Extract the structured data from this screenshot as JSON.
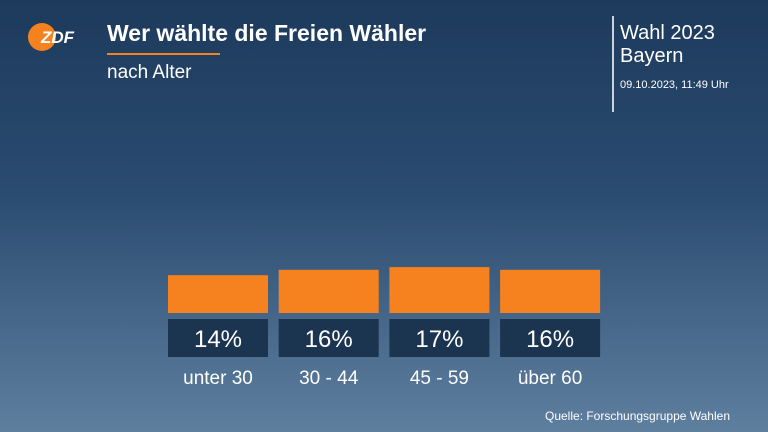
{
  "header": {
    "logo_text": "ZDF",
    "title": "Wer wählte die Freien Wähler",
    "subtitle": "nach Alter",
    "election_line1": "Wahl 2023",
    "election_line2": "Bayern",
    "timestamp": "09.10.2023, 11:49 Uhr"
  },
  "colors": {
    "accent": "#f5821f",
    "label_box": "#1b3450",
    "text": "#ffffff"
  },
  "chart_data": {
    "type": "bar",
    "categories": [
      "unter 30",
      "30 - 44",
      "45 - 59",
      "über 60"
    ],
    "values": [
      14,
      16,
      17,
      16
    ],
    "value_labels": [
      "14%",
      "16%",
      "17%",
      "16%"
    ],
    "unit": "%"
  },
  "footer": {
    "source": "Quelle: Forschungsgruppe Wahlen"
  }
}
